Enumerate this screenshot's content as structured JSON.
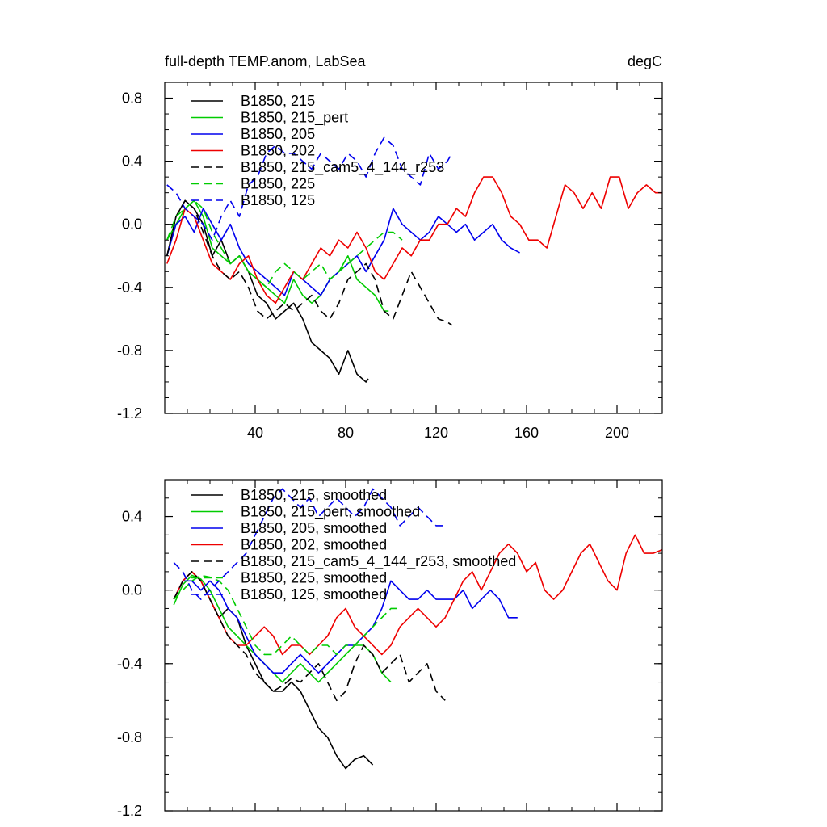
{
  "header": {
    "left_title": "full-depth TEMP.anom, LabSea",
    "right_title": "degC"
  },
  "chart_data": [
    {
      "type": "line",
      "title": "full-depth TEMP.anom, LabSea",
      "units": "degC",
      "xlim": [
        0,
        220
      ],
      "ylim": [
        -1.2,
        0.9
      ],
      "x_ticks": [
        40,
        80,
        120,
        160,
        200
      ],
      "x_tick_labels": [
        "40",
        "80",
        "120",
        "160",
        "200"
      ],
      "y_ticks": [
        -1.2,
        -0.8,
        -0.4,
        0.0,
        0.4,
        0.8
      ],
      "y_tick_labels": [
        "-1.2",
        "-0.8",
        "-0.4",
        "0.0",
        "0.4",
        "0.8"
      ],
      "grid": false,
      "legend_position": "top-left",
      "series": [
        {
          "name": "B1850, 215",
          "color": "#000000",
          "dash": "solid",
          "x": [
            1,
            5,
            9,
            13,
            17,
            21,
            25,
            29,
            33,
            37,
            41,
            45,
            49,
            53,
            57,
            61,
            65,
            69,
            73,
            77,
            81,
            85,
            89,
            90
          ],
          "y": [
            -0.2,
            0.05,
            0.15,
            0.1,
            0.0,
            -0.2,
            -0.1,
            -0.25,
            -0.2,
            -0.3,
            -0.45,
            -0.5,
            -0.6,
            -0.55,
            -0.5,
            -0.6,
            -0.75,
            -0.8,
            -0.85,
            -0.95,
            -0.8,
            -0.95,
            -1.0,
            -0.98
          ]
        },
        {
          "name": "B1850, 215_pert",
          "color": "#00cc00",
          "dash": "solid",
          "x": [
            1,
            5,
            9,
            13,
            17,
            21,
            25,
            29,
            33,
            37,
            41,
            45,
            49,
            53,
            57,
            61,
            65,
            69,
            73,
            77,
            81,
            85,
            89,
            93,
            97,
            99
          ],
          "y": [
            -0.1,
            0.0,
            0.1,
            0.15,
            0.05,
            -0.15,
            -0.2,
            -0.25,
            -0.2,
            -0.3,
            -0.35,
            -0.4,
            -0.45,
            -0.5,
            -0.35,
            -0.45,
            -0.5,
            -0.45,
            -0.35,
            -0.3,
            -0.2,
            -0.35,
            -0.4,
            -0.45,
            -0.55,
            -0.55
          ]
        },
        {
          "name": "B1850, 205",
          "color": "#0000ee",
          "dash": "solid",
          "x": [
            1,
            5,
            9,
            13,
            17,
            21,
            25,
            29,
            33,
            37,
            41,
            45,
            49,
            53,
            57,
            61,
            65,
            69,
            73,
            77,
            81,
            85,
            89,
            93,
            97,
            101,
            105,
            109,
            113,
            117,
            121,
            125,
            129,
            133,
            137,
            141,
            145,
            149,
            153,
            157
          ],
          "y": [
            -0.2,
            0.0,
            0.05,
            -0.05,
            0.1,
            0.0,
            -0.1,
            0.0,
            -0.15,
            -0.25,
            -0.3,
            -0.35,
            -0.4,
            -0.45,
            -0.3,
            -0.35,
            -0.4,
            -0.45,
            -0.35,
            -0.3,
            -0.25,
            -0.2,
            -0.3,
            -0.2,
            -0.1,
            0.1,
            0.0,
            -0.05,
            -0.1,
            -0.05,
            0.05,
            0.0,
            -0.05,
            0.0,
            -0.1,
            -0.05,
            0.0,
            -0.1,
            -0.15,
            -0.18
          ]
        },
        {
          "name": "B1850, 202",
          "color": "#ee0000",
          "dash": "solid",
          "x": [
            1,
            5,
            9,
            13,
            17,
            21,
            25,
            29,
            33,
            37,
            41,
            45,
            49,
            53,
            57,
            61,
            65,
            69,
            73,
            77,
            81,
            85,
            89,
            93,
            97,
            101,
            105,
            109,
            113,
            117,
            121,
            125,
            129,
            133,
            137,
            141,
            145,
            149,
            153,
            157,
            161,
            165,
            169,
            173,
            177,
            181,
            185,
            189,
            193,
            197,
            201,
            205,
            209,
            213,
            217,
            220
          ],
          "y": [
            -0.25,
            -0.1,
            0.1,
            0.05,
            -0.1,
            -0.25,
            -0.3,
            -0.35,
            -0.25,
            -0.2,
            -0.35,
            -0.45,
            -0.5,
            -0.4,
            -0.3,
            -0.35,
            -0.25,
            -0.15,
            -0.2,
            -0.1,
            -0.15,
            -0.05,
            -0.15,
            -0.3,
            -0.35,
            -0.25,
            -0.15,
            -0.2,
            -0.1,
            -0.1,
            0.0,
            0.0,
            0.1,
            0.05,
            0.2,
            0.3,
            0.3,
            0.2,
            0.05,
            0.0,
            -0.1,
            -0.1,
            -0.15,
            0.05,
            0.25,
            0.2,
            0.1,
            0.2,
            0.1,
            0.3,
            0.3,
            0.1,
            0.2,
            0.25,
            0.2,
            0.2
          ]
        },
        {
          "name": "B1850, 215_cam5_4_144_r253",
          "color": "#000000",
          "dash": "10,6",
          "x": [
            1,
            5,
            9,
            13,
            17,
            21,
            25,
            29,
            33,
            37,
            41,
            45,
            49,
            53,
            57,
            61,
            65,
            69,
            73,
            77,
            81,
            85,
            89,
            93,
            97,
            101,
            105,
            109,
            113,
            117,
            121,
            125,
            127
          ],
          "y": [
            -0.2,
            0.05,
            0.15,
            0.1,
            -0.05,
            -0.2,
            -0.3,
            -0.35,
            -0.3,
            -0.4,
            -0.55,
            -0.6,
            -0.55,
            -0.5,
            -0.55,
            -0.5,
            -0.45,
            -0.55,
            -0.6,
            -0.5,
            -0.35,
            -0.3,
            -0.25,
            -0.35,
            -0.55,
            -0.6,
            -0.45,
            -0.3,
            -0.4,
            -0.5,
            -0.6,
            -0.62,
            -0.64
          ]
        },
        {
          "name": "B1850, 225",
          "color": "#00cc00",
          "dash": "10,6",
          "x": [
            1,
            5,
            9,
            13,
            17,
            21,
            25,
            29,
            33,
            37,
            41,
            45,
            49,
            53,
            57,
            61,
            65,
            69,
            73,
            77,
            81,
            85,
            89,
            93,
            97,
            101,
            105
          ],
          "y": [
            -0.1,
            0.05,
            0.1,
            0.15,
            0.1,
            -0.05,
            -0.15,
            -0.25,
            -0.2,
            -0.3,
            -0.35,
            -0.4,
            -0.3,
            -0.25,
            -0.3,
            -0.35,
            -0.3,
            -0.25,
            -0.35,
            -0.3,
            -0.25,
            -0.2,
            -0.15,
            -0.1,
            -0.05,
            -0.05,
            -0.1
          ]
        },
        {
          "name": "B1850, 125",
          "color": "#0000ee",
          "dash": "10,6",
          "x": [
            1,
            5,
            9,
            13,
            17,
            21,
            25,
            29,
            33,
            37,
            41,
            45,
            49,
            53,
            57,
            61,
            65,
            69,
            73,
            77,
            81,
            85,
            89,
            93,
            97,
            101,
            105,
            109,
            113,
            117,
            121,
            125,
            127
          ],
          "y": [
            0.25,
            0.2,
            0.1,
            0.05,
            0.0,
            -0.1,
            0.05,
            0.15,
            0.05,
            0.25,
            0.3,
            0.45,
            0.5,
            0.45,
            0.45,
            0.4,
            0.35,
            0.45,
            0.4,
            0.35,
            0.45,
            0.4,
            0.3,
            0.45,
            0.55,
            0.5,
            0.35,
            0.3,
            0.25,
            0.45,
            0.35,
            0.4,
            0.45
          ]
        }
      ]
    },
    {
      "type": "line",
      "xlim": [
        0,
        220
      ],
      "ylim": [
        -1.2,
        0.6
      ],
      "x_ticks": [
        40,
        80,
        120,
        160,
        200
      ],
      "x_tick_labels": [
        "",
        "",
        "",
        "",
        ""
      ],
      "y_ticks": [
        -1.2,
        -0.8,
        -0.4,
        0.0,
        0.4
      ],
      "y_tick_labels": [
        "-1.2",
        "-0.8",
        "-0.4",
        "0.0",
        "0.4"
      ],
      "grid": false,
      "legend_position": "top-left",
      "series": [
        {
          "name": "B1850, 215, smoothed",
          "color": "#000000",
          "dash": "solid",
          "x": [
            4,
            8,
            12,
            16,
            20,
            24,
            28,
            32,
            36,
            40,
            44,
            48,
            52,
            56,
            60,
            64,
            68,
            72,
            76,
            80,
            84,
            88,
            92
          ],
          "y": [
            -0.05,
            0.05,
            0.1,
            0.05,
            -0.05,
            -0.15,
            -0.1,
            -0.15,
            -0.3,
            -0.4,
            -0.5,
            -0.55,
            -0.55,
            -0.5,
            -0.55,
            -0.65,
            -0.75,
            -0.8,
            -0.9,
            -0.97,
            -0.92,
            -0.9,
            -0.95
          ]
        },
        {
          "name": "B1850, 215_pert, smoothed",
          "color": "#00cc00",
          "dash": "solid",
          "x": [
            4,
            8,
            12,
            16,
            20,
            24,
            28,
            32,
            36,
            40,
            44,
            48,
            52,
            56,
            60,
            64,
            68,
            72,
            76,
            80,
            84,
            88,
            92,
            96,
            100
          ],
          "y": [
            -0.08,
            0.03,
            0.08,
            0.06,
            0.0,
            -0.1,
            -0.2,
            -0.25,
            -0.3,
            -0.35,
            -0.4,
            -0.45,
            -0.5,
            -0.45,
            -0.4,
            -0.45,
            -0.5,
            -0.45,
            -0.4,
            -0.35,
            -0.3,
            -0.3,
            -0.35,
            -0.45,
            -0.5
          ]
        },
        {
          "name": "B1850, 205, smoothed",
          "color": "#0000ee",
          "dash": "solid",
          "x": [
            4,
            8,
            12,
            16,
            20,
            24,
            28,
            32,
            36,
            40,
            44,
            48,
            52,
            56,
            60,
            64,
            68,
            72,
            76,
            80,
            84,
            88,
            92,
            96,
            100,
            104,
            108,
            112,
            116,
            120,
            124,
            128,
            132,
            136,
            140,
            144,
            148,
            152,
            156
          ],
          "y": [
            -0.05,
            0.05,
            0.05,
            0.0,
            0.05,
            0.0,
            -0.1,
            -0.15,
            -0.25,
            -0.35,
            -0.4,
            -0.45,
            -0.45,
            -0.4,
            -0.35,
            -0.4,
            -0.45,
            -0.4,
            -0.35,
            -0.3,
            -0.3,
            -0.25,
            -0.2,
            -0.1,
            0.05,
            0.0,
            -0.05,
            -0.05,
            0.0,
            -0.05,
            -0.05,
            -0.05,
            0.0,
            -0.1,
            -0.05,
            0.0,
            -0.05,
            -0.15,
            -0.15
          ]
        },
        {
          "name": "B1850, 202, smoothed",
          "color": "#ee0000",
          "dash": "solid",
          "x": [
            4,
            8,
            12,
            16,
            20,
            24,
            28,
            32,
            36,
            40,
            44,
            48,
            52,
            56,
            60,
            64,
            68,
            72,
            76,
            80,
            84,
            88,
            92,
            96,
            100,
            104,
            108,
            112,
            116,
            120,
            124,
            128,
            132,
            136,
            140,
            144,
            148,
            152,
            156,
            160,
            164,
            168,
            172,
            176,
            180,
            184,
            188,
            192,
            196,
            200,
            204,
            208,
            212,
            216,
            220
          ],
          "y": [
            -0.05,
            0.05,
            0.1,
            0.05,
            -0.05,
            -0.15,
            -0.25,
            -0.3,
            -0.3,
            -0.25,
            -0.2,
            -0.25,
            -0.35,
            -0.3,
            -0.3,
            -0.35,
            -0.3,
            -0.25,
            -0.15,
            -0.1,
            -0.2,
            -0.25,
            -0.3,
            -0.35,
            -0.3,
            -0.2,
            -0.15,
            -0.1,
            -0.15,
            -0.2,
            -0.15,
            -0.05,
            0.05,
            0.1,
            0.0,
            0.1,
            0.2,
            0.25,
            0.2,
            0.1,
            0.15,
            0.0,
            -0.05,
            0.0,
            0.1,
            0.2,
            0.25,
            0.15,
            0.05,
            0.0,
            0.2,
            0.3,
            0.2,
            0.2,
            0.22
          ]
        },
        {
          "name": "B1850, 215_cam5_4_144_r253, smoothed",
          "color": "#000000",
          "dash": "10,6",
          "x": [
            4,
            8,
            12,
            16,
            20,
            24,
            28,
            32,
            36,
            40,
            44,
            48,
            52,
            56,
            60,
            64,
            68,
            72,
            76,
            80,
            84,
            88,
            92,
            96,
            100,
            104,
            108,
            112,
            116,
            120,
            124
          ],
          "y": [
            -0.05,
            0.05,
            0.1,
            0.05,
            -0.05,
            -0.15,
            -0.25,
            -0.3,
            -0.35,
            -0.45,
            -0.5,
            -0.55,
            -0.52,
            -0.48,
            -0.5,
            -0.45,
            -0.4,
            -0.5,
            -0.6,
            -0.55,
            -0.4,
            -0.3,
            -0.35,
            -0.45,
            -0.4,
            -0.35,
            -0.5,
            -0.45,
            -0.4,
            -0.55,
            -0.6
          ]
        },
        {
          "name": "B1850, 225, smoothed",
          "color": "#00cc00",
          "dash": "10,6",
          "x": [
            4,
            8,
            12,
            16,
            20,
            24,
            28,
            32,
            36,
            40,
            44,
            48,
            52,
            56,
            60,
            64,
            68,
            72,
            76,
            80,
            84,
            88,
            92,
            96,
            100,
            104
          ],
          "y": [
            -0.05,
            0.0,
            0.05,
            0.08,
            0.07,
            0.05,
            0.0,
            -0.1,
            -0.2,
            -0.3,
            -0.35,
            -0.35,
            -0.3,
            -0.25,
            -0.3,
            -0.35,
            -0.3,
            -0.3,
            -0.35,
            -0.3,
            -0.3,
            -0.25,
            -0.2,
            -0.15,
            -0.1,
            -0.1
          ]
        },
        {
          "name": "B1850, 125, smoothed",
          "color": "#0000ee",
          "dash": "10,6",
          "x": [
            4,
            8,
            12,
            16,
            20,
            24,
            28,
            32,
            36,
            40,
            44,
            48,
            52,
            56,
            60,
            64,
            68,
            72,
            76,
            80,
            84,
            88,
            92,
            96,
            100,
            104,
            108,
            112,
            116,
            120,
            124
          ],
          "y": [
            0.15,
            0.1,
            0.0,
            -0.05,
            0.0,
            0.05,
            0.1,
            0.15,
            0.2,
            0.3,
            0.4,
            0.5,
            0.55,
            0.5,
            0.45,
            0.5,
            0.4,
            0.45,
            0.5,
            0.45,
            0.4,
            0.45,
            0.55,
            0.5,
            0.45,
            0.35,
            0.4,
            0.45,
            0.4,
            0.35,
            0.35
          ]
        }
      ]
    }
  ]
}
